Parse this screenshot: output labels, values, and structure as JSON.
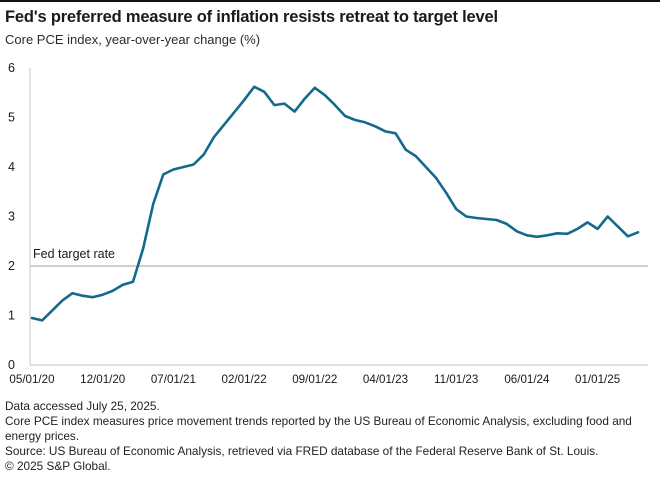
{
  "header": {
    "title": "Fed's preferred measure of inflation resists retreat to target level",
    "subtitle": "Core PCE index, year-over-year change (%)"
  },
  "chart_data": {
    "type": "line",
    "title": "Fed's preferred measure of inflation resists retreat to target level",
    "subtitle": "Core PCE index, year-over-year change (%)",
    "ylabel": "",
    "xlabel": "",
    "ylim": [
      0,
      6
    ],
    "ytick_step": 1,
    "grid": "none (single reference line at y=2 only)",
    "legend": "none",
    "x_tick_labels": [
      "05/01/20",
      "12/01/20",
      "07/01/21",
      "02/01/22",
      "09/01/22",
      "04/01/23",
      "11/01/23",
      "06/01/24",
      "01/01/25"
    ],
    "x_tick_month_interval": 7,
    "target_line": {
      "label": "Fed target rate",
      "value": 2
    },
    "series": [
      {
        "name": "Core PCE index, year-over-year change (%)",
        "x": [
          "2020-05",
          "2020-06",
          "2020-07",
          "2020-08",
          "2020-09",
          "2020-10",
          "2020-11",
          "2020-12",
          "2021-01",
          "2021-02",
          "2021-03",
          "2021-04",
          "2021-05",
          "2021-06",
          "2021-07",
          "2021-08",
          "2021-09",
          "2021-10",
          "2021-11",
          "2021-12",
          "2022-01",
          "2022-02",
          "2022-03",
          "2022-04",
          "2022-05",
          "2022-06",
          "2022-07",
          "2022-08",
          "2022-09",
          "2022-10",
          "2022-11",
          "2022-12",
          "2023-01",
          "2023-02",
          "2023-03",
          "2023-04",
          "2023-05",
          "2023-06",
          "2023-07",
          "2023-08",
          "2023-09",
          "2023-10",
          "2023-11",
          "2023-12",
          "2024-01",
          "2024-02",
          "2024-03",
          "2024-04",
          "2024-05",
          "2024-06",
          "2024-07",
          "2024-08",
          "2024-09",
          "2024-10",
          "2024-11",
          "2024-12",
          "2025-01",
          "2025-02",
          "2025-03",
          "2025-04",
          "2025-05"
        ],
        "values": [
          0.95,
          0.9,
          1.1,
          1.3,
          1.45,
          1.4,
          1.37,
          1.42,
          1.5,
          1.62,
          1.68,
          2.35,
          3.25,
          3.85,
          3.95,
          4.0,
          4.05,
          4.25,
          4.6,
          4.85,
          5.1,
          5.35,
          5.62,
          5.52,
          5.25,
          5.28,
          5.12,
          5.38,
          5.6,
          5.45,
          5.25,
          5.03,
          4.95,
          4.9,
          4.82,
          4.72,
          4.68,
          4.35,
          4.22,
          4.0,
          3.78,
          3.48,
          3.15,
          3.0,
          2.97,
          2.95,
          2.93,
          2.85,
          2.7,
          2.62,
          2.59,
          2.62,
          2.66,
          2.65,
          2.75,
          2.88,
          2.75,
          3.0,
          2.8,
          2.6,
          2.68
        ]
      }
    ],
    "colors": {
      "line": "#15698c",
      "axis": "#c6c6c6",
      "target_line": "#b3b3b3",
      "tick_text": "#1a1a1a"
    }
  },
  "footer": {
    "line1": "Data accessed July 25, 2025.",
    "line2": "Core PCE index measures price movement trends reported by the US Bureau of Economic Analysis, excluding food and energy prices.",
    "line3": "Source: US Bureau of Economic Analysis, retrieved via FRED database of the Federal Reserve Bank of St. Louis.",
    "line4": "© 2025 S&P Global."
  }
}
